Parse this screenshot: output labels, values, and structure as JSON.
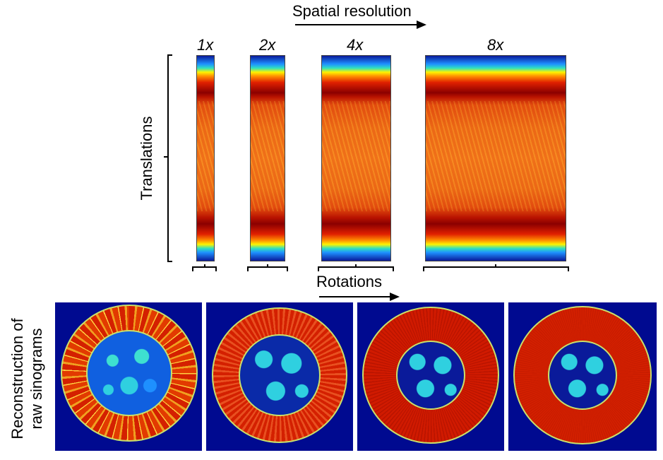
{
  "header": {
    "spatial_resolution": "Spatial resolution",
    "rotations": "Rotations"
  },
  "axes": {
    "translations": "Translations",
    "reconstruction_line1": "Reconstruction of",
    "reconstruction_line2": "raw sinograms"
  },
  "sinograms": [
    {
      "label": "1x"
    },
    {
      "label": "2x"
    },
    {
      "label": "4x"
    },
    {
      "label": "8x"
    }
  ],
  "colors": {
    "background_blue": "#000a90",
    "ring_red": "#d42000",
    "core_cyan": "#2fd0e0"
  }
}
